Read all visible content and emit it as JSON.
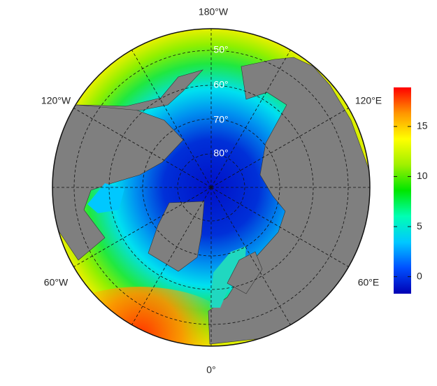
{
  "map": {
    "longitude_labels": [
      "180°W",
      "120°W",
      "120°E",
      "60°W",
      "60°E",
      "0°"
    ],
    "latitude_labels": [
      "50°",
      "60°",
      "70°",
      "80°"
    ],
    "colorbar": {
      "range": [
        -1.7,
        18.9
      ],
      "ticks": [
        0,
        5,
        10,
        15
      ],
      "colors": [
        "#0000b4",
        "#0050ff",
        "#00c8ff",
        "#00ffb4",
        "#00e600",
        "#a0f000",
        "#ffff00",
        "#ff9600",
        "#ff0000"
      ]
    }
  }
}
